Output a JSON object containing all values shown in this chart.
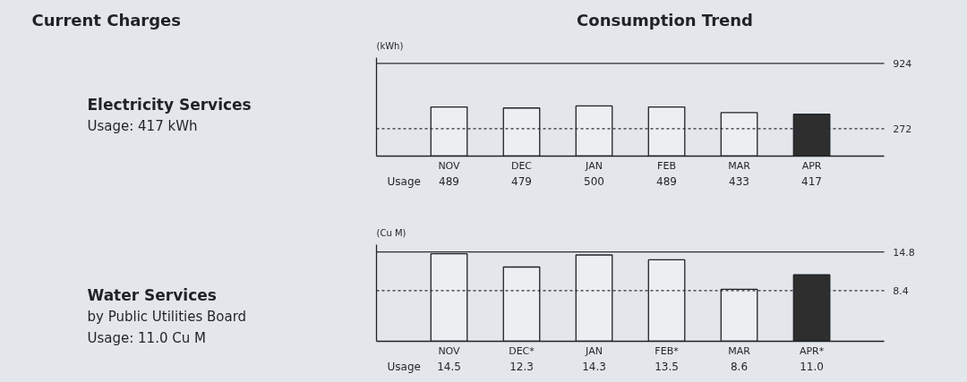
{
  "chart_data": [
    {
      "type": "bar",
      "title": "Consumption Trend",
      "ylabel": "(kWh)",
      "xlabel": "Usage",
      "annotations": [
        "Current Charges",
        "Electricity Services",
        "Usage: 417 kWh"
      ],
      "categories": [
        "NOV",
        "DEC",
        "JAN",
        "FEB",
        "MAR",
        "APR"
      ],
      "values": [
        489,
        479,
        500,
        489,
        433,
        417
      ],
      "colors": [
        "#eceef1",
        "#eceef1",
        "#eceef1",
        "#eceef1",
        "#eceef1",
        "#2e2e2e"
      ],
      "ylim": [
        0,
        980
      ],
      "data_labels": true,
      "ref_lines": [
        {
          "axis": "y",
          "value": 272,
          "label": "272",
          "color": "#2a2d31",
          "line_style": "dashed"
        },
        {
          "axis": "y",
          "value": 924,
          "label": "924",
          "color": "#2a2d31",
          "line_style": "solid"
        }
      ]
    },
    {
      "type": "bar",
      "ylabel": "(Cu M)",
      "xlabel": "Usage",
      "annotations": [
        "Water Services",
        "by Public Utilities Board",
        "Usage: 11.0 Cu M"
      ],
      "categories": [
        "NOV",
        "DEC*",
        "JAN",
        "FEB*",
        "MAR",
        "APR*"
      ],
      "values": [
        14.5,
        12.3,
        14.3,
        13.5,
        8.6,
        11.0
      ],
      "value_labels": [
        "14.5",
        "12.3",
        "14.3",
        "13.5",
        "8.6",
        "11.0"
      ],
      "colors": [
        "#eceef1",
        "#eceef1",
        "#eceef1",
        "#eceef1",
        "#eceef1",
        "#2e2e2e"
      ],
      "ylim": [
        0,
        16
      ],
      "ref_lines": [
        {
          "axis": "y",
          "value": 8.4,
          "label": "8.4",
          "color": "#2a2d31",
          "line_style": "dashed"
        },
        {
          "axis": "y",
          "value": 14.8,
          "label": "14.8",
          "color": "#2a2d31",
          "line_style": "solid"
        }
      ]
    }
  ]
}
